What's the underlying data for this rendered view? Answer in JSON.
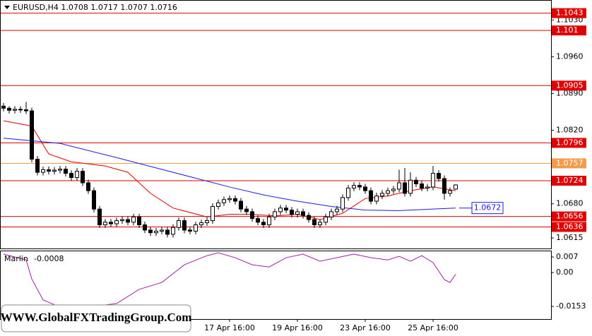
{
  "chart_data": [
    {
      "type": "candlestick",
      "title": "EURUSD,H4  1.0708 1.0717 1.0707 1.0716",
      "categories": [
        null,
        null,
        null,
        null,
        null,
        null,
        null,
        null,
        null,
        null,
        null,
        null,
        null,
        null,
        null,
        null,
        null,
        null,
        null,
        null,
        null,
        null,
        null,
        null,
        null,
        null,
        null,
        null,
        null,
        null,
        null,
        null,
        null,
        null,
        null,
        null,
        null,
        null,
        null,
        null,
        "17 Apr 16:00",
        null,
        null,
        null,
        null,
        null,
        null,
        null,
        null,
        null,
        null,
        null,
        "19 Apr 16:00",
        null,
        null,
        null,
        null,
        null,
        null,
        null,
        null,
        null,
        null,
        null,
        "23 Apr 16:00",
        null,
        null,
        null,
        null,
        null,
        null,
        null,
        null,
        null,
        null,
        null,
        "25 Apr 16:00",
        null,
        null,
        null,
        null
      ],
      "ohlc": [
        [
          1.0866,
          1.0872,
          1.0856,
          1.0862
        ],
        [
          1.0862,
          1.0866,
          1.0852,
          1.0858
        ],
        [
          1.0858,
          1.0866,
          1.0852,
          1.086
        ],
        [
          1.086,
          1.0866,
          1.0853,
          1.0859
        ],
        [
          1.0859,
          1.0874,
          1.0851,
          1.0857
        ],
        [
          1.0857,
          1.0863,
          1.0759,
          1.0765
        ],
        [
          1.0765,
          1.0771,
          1.0734,
          1.074
        ],
        [
          1.074,
          1.0751,
          1.0734,
          1.0745
        ],
        [
          1.0745,
          1.0751,
          1.0736,
          1.0742
        ],
        [
          1.0742,
          1.075,
          1.0736,
          1.0744
        ],
        [
          1.0744,
          1.0752,
          1.0738,
          1.0746
        ],
        [
          1.0746,
          1.0752,
          1.0732,
          1.0738
        ],
        [
          1.0738,
          1.0744,
          1.0724,
          1.073
        ],
        [
          1.073,
          1.0748,
          1.0724,
          1.0742
        ],
        [
          1.0742,
          1.0748,
          1.0714,
          1.072
        ],
        [
          1.072,
          1.0726,
          1.0699,
          1.0705
        ],
        [
          1.0705,
          1.0711,
          1.0664,
          1.067
        ],
        [
          1.067,
          1.0676,
          1.0634,
          1.064
        ],
        [
          1.064,
          1.0651,
          1.0634,
          1.0645
        ],
        [
          1.0645,
          1.0651,
          1.0636,
          1.0642
        ],
        [
          1.0642,
          1.0654,
          1.0636,
          1.0648
        ],
        [
          1.0648,
          1.0656,
          1.0642,
          1.065
        ],
        [
          1.065,
          1.0656,
          1.0639,
          1.0645
        ],
        [
          1.0645,
          1.0661,
          1.0639,
          1.0655
        ],
        [
          1.0655,
          1.0661,
          1.0634,
          1.064
        ],
        [
          1.064,
          1.0646,
          1.0624,
          1.063
        ],
        [
          1.063,
          1.0636,
          1.0619,
          1.0625
        ],
        [
          1.0625,
          1.0634,
          1.0619,
          1.0628
        ],
        [
          1.0628,
          1.0636,
          1.0622,
          1.063
        ],
        [
          1.063,
          1.0636,
          1.0616,
          1.0622
        ],
        [
          1.0622,
          1.0641,
          1.0616,
          1.0635
        ],
        [
          1.0635,
          1.0654,
          1.0629,
          1.0648
        ],
        [
          1.0648,
          1.0654,
          1.0624,
          1.063
        ],
        [
          1.063,
          1.0636,
          1.0622,
          1.0628
        ],
        [
          1.0628,
          1.0646,
          1.0622,
          1.064
        ],
        [
          1.064,
          1.065,
          1.0634,
          1.0644
        ],
        [
          1.0644,
          1.0654,
          1.0638,
          1.0648
        ],
        [
          1.0648,
          1.0681,
          1.0642,
          1.0675
        ],
        [
          1.0675,
          1.0688,
          1.0669,
          1.0682
        ],
        [
          1.0682,
          1.0694,
          1.0676,
          1.0688
        ],
        [
          1.0688,
          1.0696,
          1.0682,
          1.069
        ],
        [
          1.069,
          1.0696,
          1.0679,
          1.0685
        ],
        [
          1.0685,
          1.0691,
          1.0664,
          1.067
        ],
        [
          1.067,
          1.0676,
          1.0659,
          1.0665
        ],
        [
          1.0665,
          1.0671,
          1.0646,
          1.0652
        ],
        [
          1.0652,
          1.0658,
          1.0639,
          1.0645
        ],
        [
          1.0645,
          1.0651,
          1.0634,
          1.064
        ],
        [
          1.064,
          1.0661,
          1.0634,
          1.0655
        ],
        [
          1.0655,
          1.0671,
          1.0649,
          1.0665
        ],
        [
          1.0665,
          1.0678,
          1.0659,
          1.0672
        ],
        [
          1.0672,
          1.0678,
          1.0662,
          1.0668
        ],
        [
          1.0668,
          1.0674,
          1.0654,
          1.066
        ],
        [
          1.066,
          1.0671,
          1.0654,
          1.0665
        ],
        [
          1.0665,
          1.0671,
          1.0652,
          1.0658
        ],
        [
          1.0658,
          1.0664,
          1.0644,
          1.065
        ],
        [
          1.065,
          1.0656,
          1.0634,
          1.064
        ],
        [
          1.064,
          1.0651,
          1.0634,
          1.0645
        ],
        [
          1.0645,
          1.0661,
          1.0639,
          1.0655
        ],
        [
          1.0655,
          1.0671,
          1.0649,
          1.0665
        ],
        [
          1.0665,
          1.0676,
          1.0659,
          1.067
        ],
        [
          1.067,
          1.0698,
          1.0664,
          1.0692
        ],
        [
          1.0692,
          1.0716,
          1.0686,
          1.071
        ],
        [
          1.071,
          1.0721,
          1.0704,
          1.0715
        ],
        [
          1.0715,
          1.0721,
          1.0706,
          1.0712
        ],
        [
          1.0712,
          1.0718,
          1.0699,
          1.0705
        ],
        [
          1.0705,
          1.0711,
          1.0679,
          1.0685
        ],
        [
          1.0685,
          1.0701,
          1.0679,
          1.0695
        ],
        [
          1.0695,
          1.0706,
          1.0689,
          1.07
        ],
        [
          1.07,
          1.0711,
          1.0694,
          1.0705
        ],
        [
          1.0705,
          1.0714,
          1.0699,
          1.0708
        ],
        [
          1.0708,
          1.0745,
          1.0702,
          1.072
        ],
        [
          1.072,
          1.0748,
          1.0694,
          1.07
        ],
        [
          1.07,
          1.074,
          1.0694,
          1.0725
        ],
        [
          1.0725,
          1.0731,
          1.0712,
          1.0718
        ],
        [
          1.0718,
          1.0724,
          1.0704,
          1.071
        ],
        [
          1.071,
          1.0718,
          1.0704,
          1.0712
        ],
        [
          1.0712,
          1.0752,
          1.0706,
          1.0738
        ],
        [
          1.0738,
          1.0744,
          1.0722,
          1.0728
        ],
        [
          1.0728,
          1.0734,
          1.0688,
          1.07
        ],
        [
          1.07,
          1.0711,
          1.0694,
          1.0705
        ],
        [
          1.0708,
          1.0717,
          1.0707,
          1.0716
        ]
      ],
      "series": [
        {
          "color": "#e00000",
          "x": [
            0,
            5,
            8,
            12,
            18,
            22,
            26,
            30,
            36,
            40,
            44,
            48,
            52,
            56,
            60,
            64,
            68,
            72,
            76,
            80
          ],
          "values": [
            1.0838,
            1.0828,
            1.0775,
            1.076,
            1.0752,
            1.074,
            1.07,
            1.0672,
            1.0655,
            1.066,
            1.066,
            1.0657,
            1.066,
            1.065,
            1.0662,
            1.069,
            1.0695,
            1.0705,
            1.0712,
            1.0705
          ]
        },
        {
          "color": "#1a1ae6",
          "x": [
            0,
            10,
            20,
            30,
            40,
            46,
            52,
            58,
            64,
            70,
            76,
            80
          ],
          "values": [
            1.0805,
            1.0795,
            1.0768,
            1.074,
            1.0712,
            1.0697,
            1.0685,
            1.0675,
            1.0668,
            1.0667,
            1.067,
            1.0672
          ],
          "price_label": 1.0672
        }
      ],
      "levels": [
        {
          "value": 1.1043,
          "color": "#e00000"
        },
        {
          "value": 1.101,
          "color": "#e00000"
        },
        {
          "value": 1.0905,
          "color": "#e00000"
        },
        {
          "value": 1.0796,
          "color": "#e00000"
        },
        {
          "value": 1.0757,
          "color": "#f59a4a"
        },
        {
          "value": 1.0724,
          "color": "#e00000"
        },
        {
          "value": 1.0656,
          "color": "#e00000"
        },
        {
          "value": 1.0636,
          "color": "#e00000"
        }
      ],
      "ylim": [
        1.0595,
        1.1068
      ],
      "yticks": [
        {
          "value": 1.103,
          "label": "1.1030"
        },
        {
          "value": 1.096,
          "label": "1.0960"
        },
        {
          "value": 1.089,
          "label": "1.0890"
        },
        {
          "value": 1.082,
          "label": "1.0820"
        },
        {
          "value": 1.068,
          "label": "1.0680"
        },
        1.0615
      ],
      "watermark": "WWW.GlobalFXTradingGroup.Com"
    },
    {
      "type": "line",
      "name": "Marlin",
      "current": -0.0008,
      "series": [
        {
          "color": "#a020a0",
          "x": [
            0,
            4,
            5,
            7,
            10,
            15,
            20,
            24,
            28,
            32,
            36,
            38,
            41,
            44,
            47,
            50,
            53,
            56,
            59,
            62,
            65,
            68,
            70,
            72,
            74,
            76,
            78,
            79,
            80
          ],
          "values": [
            0.0083,
            0.0057,
            -0.0029,
            -0.0124,
            -0.0156,
            -0.0156,
            -0.014,
            -0.0076,
            -0.0045,
            0.0035,
            0.0076,
            0.0089,
            0.0067,
            0.0035,
            0.0025,
            0.0067,
            0.0083,
            0.0051,
            0.0067,
            0.0083,
            0.0067,
            0.0057,
            0.0073,
            0.0051,
            0.0076,
            0.0045,
            -0.0032,
            -0.0045,
            -0.0008
          ]
        }
      ],
      "ylim": [
        -0.021,
        0.0099
      ],
      "yticks": [
        0.007,
        {
          "value": 0,
          "label": "0.00"
        },
        -0.0153
      ]
    }
  ]
}
